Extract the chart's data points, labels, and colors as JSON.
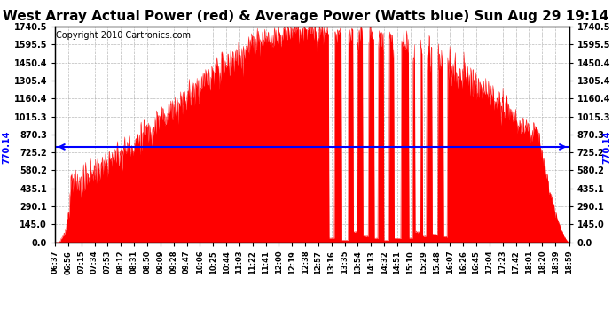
{
  "title": "West Array Actual Power (red) & Average Power (Watts blue) Sun Aug 29 19:14",
  "copyright_text": "Copyright 2010 Cartronics.com",
  "average_power": 770.14,
  "y_max": 1740.5,
  "y_min": 0.0,
  "y_ticks": [
    0.0,
    145.0,
    290.1,
    435.1,
    580.2,
    725.2,
    870.3,
    1015.3,
    1160.4,
    1305.4,
    1450.4,
    1595.5,
    1740.5
  ],
  "x_tick_labels": [
    "06:37",
    "06:56",
    "07:15",
    "07:34",
    "07:53",
    "08:12",
    "08:31",
    "08:50",
    "09:09",
    "09:28",
    "09:47",
    "10:06",
    "10:25",
    "10:44",
    "11:03",
    "11:22",
    "11:41",
    "12:00",
    "12:19",
    "12:38",
    "12:57",
    "13:16",
    "13:35",
    "13:54",
    "14:13",
    "14:32",
    "14:51",
    "15:10",
    "15:29",
    "15:48",
    "16:07",
    "16:26",
    "16:45",
    "17:04",
    "17:23",
    "17:42",
    "18:01",
    "18:20",
    "18:39",
    "18:59"
  ],
  "fill_color": "#FF0000",
  "line_color": "#0000FF",
  "background_color": "#FFFFFF",
  "grid_color": "#AAAAAA",
  "title_fontsize": 11,
  "copyright_fontsize": 7
}
